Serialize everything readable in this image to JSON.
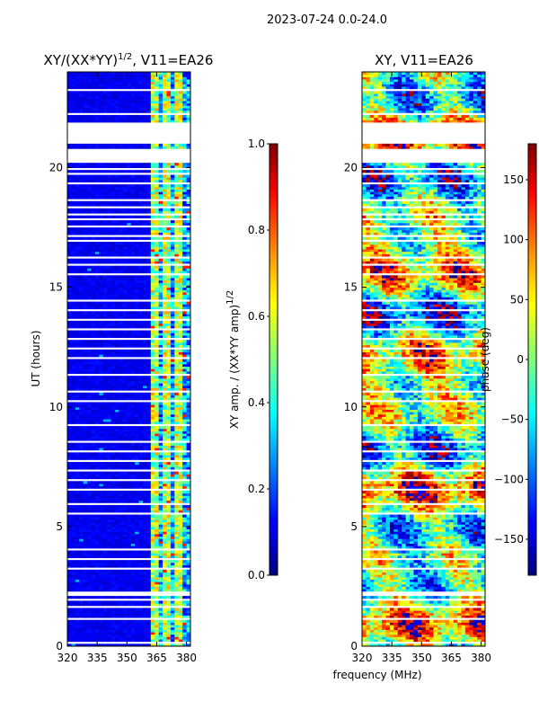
{
  "figure_title": "2023-07-24 0.0-24.0",
  "colors": {
    "background": "#ffffff",
    "axis": "#000000"
  },
  "chart_data": [
    {
      "type": "heatmap",
      "title_main": "XY/(XX*YY)",
      "title_sup": "1/2",
      "title_tail": ", V11=EA26",
      "xlabel": "",
      "ylabel": "UT (hours)",
      "xlim": [
        320,
        382
      ],
      "ylim": [
        0,
        24
      ],
      "x_ticks": [
        320,
        335,
        350,
        365,
        380
      ],
      "y_ticks": [
        0,
        5,
        10,
        15,
        20
      ],
      "colormap": "jet",
      "note": "low amplitude (~0.05) across 320-361 MHz, higher amplitude stripes (~0.4-0.7) across 361-382 MHz"
    },
    {
      "type": "colorbar",
      "label_main": "XY amp. / (XX*YY amp)",
      "label_sup": "1/2",
      "range": [
        0.0,
        1.0
      ],
      "ticks": [
        "0.0",
        "0.2",
        "0.4",
        "0.6",
        "0.8",
        "1.0"
      ]
    },
    {
      "type": "heatmap",
      "title": "XY, V11=EA26",
      "xlabel": "frequency (MHz)",
      "ylabel": "",
      "xlim": [
        320,
        382
      ],
      "ylim": [
        0,
        24
      ],
      "x_ticks": [
        320,
        335,
        350,
        365,
        380
      ],
      "y_ticks": [
        0,
        5,
        10,
        15,
        20
      ],
      "colormap": "jet",
      "note": "phase varies widely across frequency and time"
    },
    {
      "type": "colorbar",
      "label": "phase (deg)",
      "range": [
        -180,
        180
      ],
      "ticks": [
        "-150",
        "-100",
        "-50",
        "0",
        "50",
        "100",
        "150"
      ]
    }
  ]
}
